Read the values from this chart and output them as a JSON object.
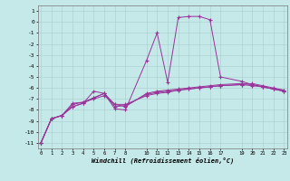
{
  "title": "",
  "xlabel": "Windchill (Refroidissement éolien,°C)",
  "bg_color": "#c5e8e8",
  "grid_color": "#aacccc",
  "line_color": "#993399",
  "series1": {
    "x": [
      0,
      1,
      2,
      3,
      4,
      5,
      6,
      7,
      8,
      10,
      11,
      12,
      13,
      14,
      15,
      16,
      17,
      19,
      20,
      21,
      22,
      23
    ],
    "y": [
      -11,
      -8.8,
      -8.5,
      -7.7,
      -7.4,
      -6.3,
      -6.5,
      -7.9,
      -8.0,
      -3.5,
      -1.0,
      -5.5,
      0.4,
      0.5,
      0.5,
      0.2,
      -5.0,
      -5.4,
      -5.7,
      -5.9,
      -6.1,
      -6.3
    ]
  },
  "series2": {
    "x": [
      0,
      1,
      2,
      3,
      4,
      5,
      6,
      7,
      8,
      10,
      11,
      12,
      13,
      14,
      15,
      16,
      17,
      19,
      20,
      21,
      22,
      23
    ],
    "y": [
      -11,
      -8.8,
      -8.5,
      -7.4,
      -7.3,
      -6.9,
      -6.5,
      -7.5,
      -7.7,
      -6.5,
      -6.3,
      -6.2,
      -6.1,
      -6.0,
      -5.9,
      -5.8,
      -5.7,
      -5.6,
      -5.7,
      -5.9,
      -6.1,
      -6.3
    ]
  },
  "series3": {
    "x": [
      0,
      1,
      2,
      3,
      4,
      5,
      6,
      7,
      8,
      10,
      11,
      12,
      13,
      14,
      15,
      16,
      17,
      19,
      20,
      21,
      22,
      23
    ],
    "y": [
      -11,
      -8.8,
      -8.5,
      -7.7,
      -7.4,
      -6.9,
      -6.5,
      -7.7,
      -7.6,
      -6.6,
      -6.4,
      -6.3,
      -6.2,
      -6.1,
      -6.0,
      -5.9,
      -5.8,
      -5.7,
      -5.6,
      -5.8,
      -6.0,
      -6.2
    ]
  },
  "series4": {
    "x": [
      0,
      1,
      2,
      3,
      4,
      5,
      6,
      7,
      8,
      10,
      11,
      12,
      13,
      14,
      15,
      16,
      17,
      19,
      20,
      21,
      22,
      23
    ],
    "y": [
      -11,
      -8.8,
      -8.5,
      -7.5,
      -7.3,
      -7.0,
      -6.7,
      -7.5,
      -7.5,
      -6.7,
      -6.5,
      -6.4,
      -6.2,
      -6.1,
      -6.0,
      -5.9,
      -5.8,
      -5.7,
      -5.8,
      -5.9,
      -6.1,
      -6.2
    ]
  },
  "xlim": [
    -0.3,
    23.3
  ],
  "ylim": [
    -11.5,
    1.5
  ],
  "xticks": [
    0,
    1,
    2,
    3,
    4,
    5,
    6,
    7,
    8,
    10,
    11,
    12,
    13,
    14,
    15,
    16,
    17,
    19,
    20,
    21,
    22,
    23
  ],
  "yticks": [
    1,
    0,
    -1,
    -2,
    -3,
    -4,
    -5,
    -6,
    -7,
    -8,
    -9,
    -10,
    -11
  ],
  "marker": "+",
  "markersize": 2.5,
  "linewidth": 0.7
}
